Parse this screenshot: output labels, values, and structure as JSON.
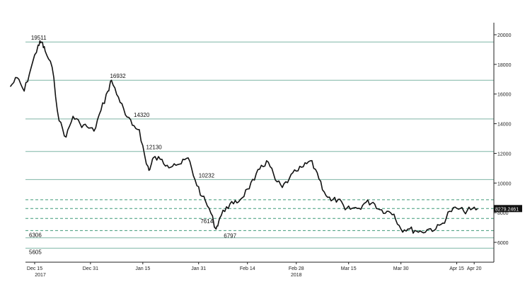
{
  "chart_data": {
    "type": "line",
    "title": "",
    "xlabel": "",
    "ylabel": "",
    "ylim": [
      5000,
      21000
    ],
    "yticks": [
      6000,
      8000,
      10000,
      12000,
      14000,
      16000,
      18000,
      20000
    ],
    "ytick_labels": [
      "6000",
      "8000",
      "10000",
      "12000",
      "14000",
      "16000",
      "18000",
      "20000"
    ],
    "xtick_labels": [
      "Dec 15",
      "Dec 31",
      "Jan 15",
      "Jan 31",
      "Feb 14",
      "Feb 28",
      "Mar 15",
      "Mar 30",
      "Apr 15",
      "Apr 20"
    ],
    "year_labels": [
      {
        "text": "2017",
        "under": "Dec 15"
      },
      {
        "text": "2018",
        "under": "Feb 28"
      }
    ],
    "last_price_label": "8279.2461",
    "colors": {
      "line": "#111111",
      "solid_level": "#7fb5a5",
      "dashed_level": "#3f9a78",
      "last_price_bg": "#111111"
    },
    "solid_levels": [
      {
        "value": 19511,
        "label": "19511"
      },
      {
        "value": 16932,
        "label": "16932"
      },
      {
        "value": 14320,
        "label": "14320"
      },
      {
        "value": 12130,
        "label": "12130"
      },
      {
        "value": 10232,
        "label": "10232"
      },
      {
        "value": 6306,
        "label": "6306"
      },
      {
        "value": 5605,
        "label": "5605"
      }
    ],
    "dashed_levels": [
      {
        "value": 8870
      },
      {
        "value": 8279
      },
      {
        "value": 7614,
        "label": "7614"
      },
      {
        "value": 6797,
        "label": "6797"
      }
    ],
    "series": [
      {
        "x": [
          "Dec 08",
          "Dec 10",
          "Dec 12",
          "Dec 14",
          "Dec 16",
          "Dec 17",
          "Dec 18",
          "Dec 20",
          "Dec 22",
          "Dec 24",
          "Dec 26",
          "Dec 28",
          "Dec 30",
          "Jan 01",
          "Jan 03",
          "Jan 05",
          "Jan 06",
          "Jan 08",
          "Jan 10",
          "Jan 12",
          "Jan 14",
          "Jan 16",
          "Jan 17",
          "Jan 18",
          "Jan 20",
          "Jan 22",
          "Jan 24",
          "Jan 26",
          "Jan 28",
          "Jan 30",
          "Feb 01",
          "Feb 03",
          "Feb 05",
          "Feb 06",
          "Feb 08",
          "Feb 10",
          "Feb 12",
          "Feb 14",
          "Feb 16",
          "Feb 18",
          "Feb 20",
          "Feb 22",
          "Feb 24",
          "Feb 26",
          "Feb 28",
          "Mar 02",
          "Mar 04",
          "Mar 06",
          "Mar 08",
          "Mar 10",
          "Mar 12",
          "Mar 14",
          "Mar 16",
          "Mar 18",
          "Mar 20",
          "Mar 22",
          "Mar 24",
          "Mar 26",
          "Mar 28",
          "Mar 30",
          "Apr 01",
          "Apr 03",
          "Apr 05",
          "Apr 07",
          "Apr 09",
          "Apr 11",
          "Apr 13",
          "Apr 15",
          "Apr 17",
          "Apr 19",
          "Apr 21"
        ],
        "values": [
          16500,
          17100,
          16200,
          17800,
          19300,
          19511,
          18900,
          17800,
          14200,
          13100,
          14500,
          14000,
          13800,
          13500,
          14900,
          16200,
          16932,
          15800,
          14600,
          13900,
          13600,
          11300,
          10900,
          11700,
          11600,
          11200,
          11300,
          11300,
          11700,
          10200,
          9100,
          8300,
          6900,
          7614,
          8400,
          8600,
          8900,
          9600,
          10200,
          11200,
          11400,
          10200,
          9700,
          10300,
          10800,
          11100,
          11500,
          10700,
          9400,
          8800,
          8900,
          8200,
          8300,
          8300,
          8700,
          8700,
          8200,
          8100,
          7900,
          6900,
          6900,
          6800,
          6700,
          6900,
          6900,
          7300,
          8100,
          8300,
          8100,
          8200,
          8279
        ]
      }
    ],
    "grid": false,
    "legend": "none"
  }
}
